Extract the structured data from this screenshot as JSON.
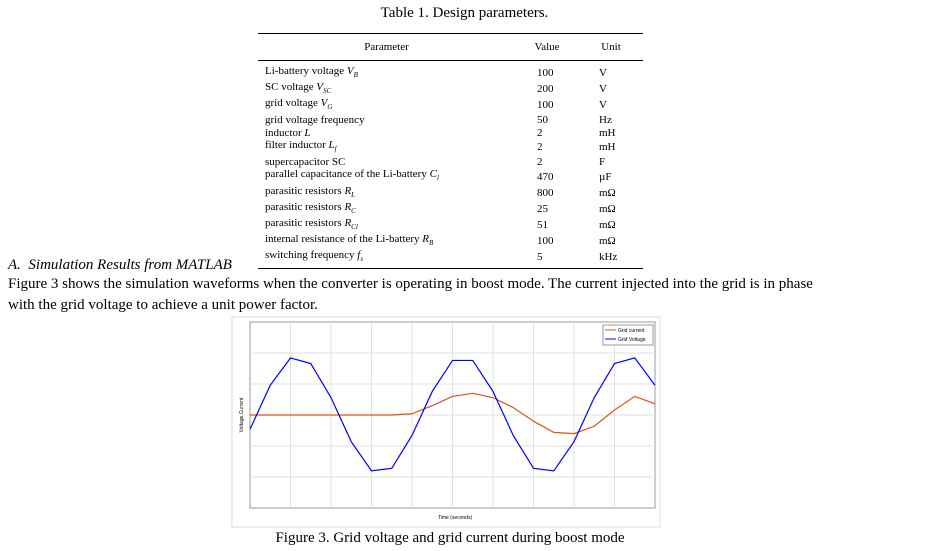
{
  "table": {
    "title": "Table 1. Design parameters.",
    "columns": [
      "Parameter",
      "Value",
      "Unit"
    ],
    "rows": [
      {
        "parameter": {
          "name": "Li-battery voltage",
          "symbol": "V",
          "sub": "B"
        },
        "value": 100,
        "unit": "V"
      },
      {
        "parameter": {
          "name": "SC voltage",
          "symbol": "V",
          "sub": "SC"
        },
        "value": 200,
        "unit": "V"
      },
      {
        "parameter": {
          "name": "grid voltage",
          "symbol": "V",
          "sub": "G"
        },
        "value": 100,
        "unit": "V"
      },
      {
        "parameter": {
          "name": "grid voltage frequency"
        },
        "value": 50,
        "unit": "Hz"
      },
      {
        "parameter": {
          "name": "inductor",
          "symbol": "L"
        },
        "value": 2,
        "unit": "mH"
      },
      {
        "parameter": {
          "name": "filter inductor",
          "symbol": "L",
          "sub": "f"
        },
        "value": 2,
        "unit": "mH"
      },
      {
        "parameter": {
          "name": "supercapacitor SC"
        },
        "value": 2,
        "unit": "F"
      },
      {
        "parameter": {
          "name": "parallel capacitance of the Li-battery",
          "symbol": "C",
          "sub": "l"
        },
        "value": 470,
        "unit": "µF"
      },
      {
        "parameter": {
          "name": "parasitic resistors",
          "symbol": "R",
          "sub": "L"
        },
        "value": 800,
        "unit": "mΩ"
      },
      {
        "parameter": {
          "name": "parasitic resistors",
          "symbol": "R",
          "sub": "C"
        },
        "value": 25,
        "unit": "mΩ"
      },
      {
        "parameter": {
          "name": "parasitic resistors",
          "symbol": "R",
          "sub": "Cl"
        },
        "value": 51,
        "unit": "mΩ"
      },
      {
        "parameter": {
          "name": "internal resistance of the Li-battery",
          "symbol": "R",
          "sub": "B"
        },
        "value": 100,
        "unit": "mΩ"
      },
      {
        "parameter": {
          "name": "switching frequency",
          "symbol": "f",
          "sub": "s"
        },
        "value": 5,
        "unit": "kHz"
      }
    ]
  },
  "section": {
    "label": "A.",
    "title": "Simulation Results from MATLAB",
    "lines": [
      "Figure 3 shows the simulation waveforms when the converter is operating in boost mode. The current injected into the grid is in phase",
      "with the grid voltage to achieve a unit power factor."
    ]
  },
  "figure": {
    "caption": "Figure 3. Grid voltage and grid current during boost mode",
    "chart_data": {
      "type": "line",
      "x_label": "Time (seconds)",
      "y_label": "Voltage,Current",
      "grid": true,
      "xlim": [
        0,
        0.05
      ],
      "ylim": [
        -150,
        150
      ],
      "x": [
        0,
        0.0025,
        0.005,
        0.0075,
        0.01,
        0.0125,
        0.015,
        0.0175,
        0.02,
        0.0225,
        0.025,
        0.0275,
        0.03,
        0.0325,
        0.035,
        0.0375,
        0.04,
        0.0425,
        0.045,
        0.0475,
        0.05
      ],
      "legend": "upper right",
      "series": [
        {
          "name": "Grid current",
          "color": "#d95319",
          "values": [
            0,
            0,
            0,
            0,
            0,
            0,
            0,
            0,
            2,
            15,
            30,
            35,
            28,
            12,
            -10,
            -28,
            -30,
            -18,
            8,
            30,
            18
          ]
        },
        {
          "name": "Grid Voltage",
          "color": "#0000ff",
          "values": [
            -23,
            48,
            92,
            83,
            28,
            -43,
            -90,
            -86,
            -33,
            38,
            88,
            88,
            38,
            -33,
            -86,
            -90,
            -43,
            28,
            83,
            92,
            48
          ]
        }
      ]
    }
  }
}
